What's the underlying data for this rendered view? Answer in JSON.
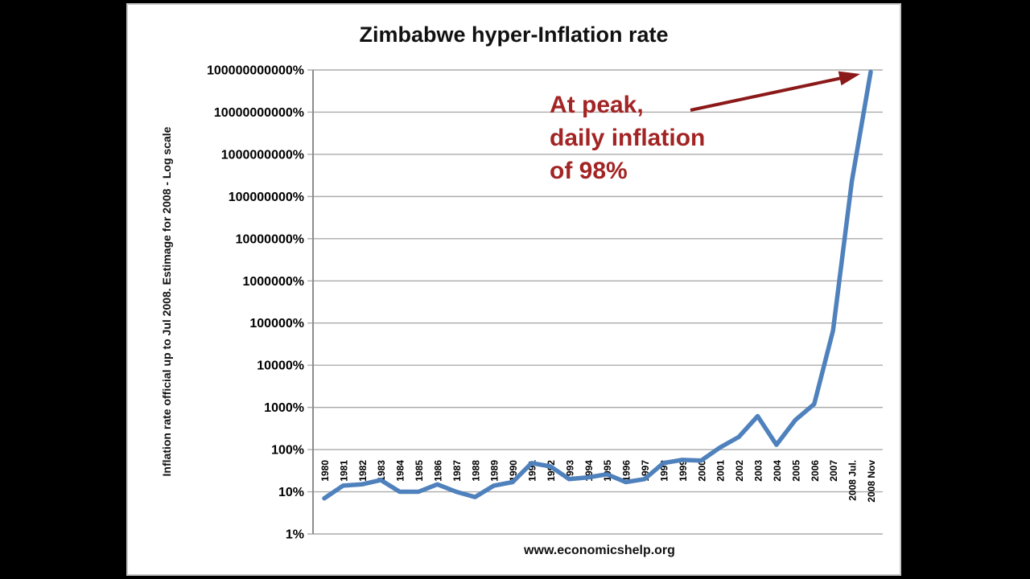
{
  "slide": {
    "footer": "www.economicshelp.org"
  },
  "annotation": {
    "line1": "At peak,",
    "line2": "daily inflation",
    "line3": "of 98%",
    "color": "#a32424",
    "arrow_color": "#8b1919"
  },
  "chart_data": {
    "type": "line",
    "title": "Zimbabwe hyper-Inflation rate",
    "ylabel": "Inflation rate official up to Jul 2008. Estimage for 2008 - Log scale",
    "xlabel": "",
    "y_scale": "log",
    "ylim": [
      1,
      100000000000
    ],
    "grid": true,
    "legend": "none",
    "y_ticks": [
      "1%",
      "10%",
      "100%",
      "1000%",
      "10000%",
      "100000%",
      "1000000%",
      "10000000%",
      "100000000%",
      "1000000000%",
      "10000000000%",
      "100000000000%"
    ],
    "categories": [
      "1980",
      "1981",
      "1982",
      "1983",
      "1984",
      "1985",
      "1986",
      "1987",
      "1988",
      "1989",
      "1990",
      "1991",
      "1992",
      "1993",
      "1994",
      "1995",
      "1996",
      "1997",
      "1998",
      "1999",
      "2000",
      "2001",
      "2002",
      "2003",
      "2004",
      "2005",
      "2006",
      "2007",
      "2008 Jul.",
      "2008 Nov"
    ],
    "values": [
      7,
      14,
      15,
      19,
      10,
      10,
      15,
      10,
      7.5,
      14,
      17,
      48,
      40,
      20,
      22,
      26,
      17,
      20,
      48,
      57,
      55,
      112,
      199,
      620,
      130,
      500,
      1200,
      66000,
      230000000,
      90000000000
    ],
    "line_color": "#4f81bd",
    "grid_color": "#ababab",
    "axis_color": "#8c8c8c"
  }
}
